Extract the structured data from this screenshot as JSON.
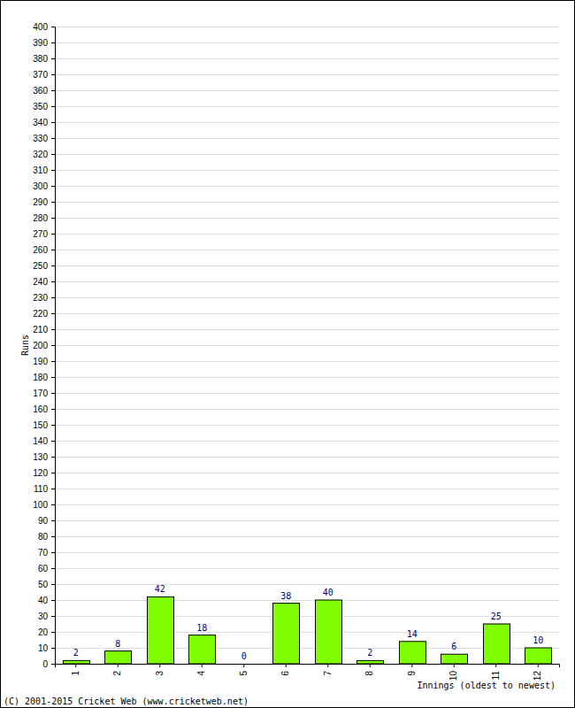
{
  "chart_data": {
    "type": "bar",
    "x_label": "Innings (oldest to newest)",
    "y_label": "Runs",
    "annotations": [
      "(C) 2001-2015 Cricket Web (www.cricketweb.net)"
    ],
    "categories": [
      "1",
      "2",
      "3",
      "4",
      "5",
      "6",
      "7",
      "8",
      "9",
      "10",
      "11",
      "12"
    ],
    "values": [
      2,
      8,
      42,
      18,
      0,
      38,
      40,
      2,
      14,
      6,
      25,
      10
    ],
    "color": "#80ff00",
    "data_labels": true,
    "ylim": [
      0,
      400
    ],
    "yticks": [
      0,
      10,
      20,
      30,
      40,
      50,
      60,
      70,
      80,
      90,
      100,
      110,
      120,
      130,
      140,
      150,
      160,
      170,
      180,
      190,
      200,
      210,
      220,
      230,
      240,
      250,
      260,
      270,
      280,
      290,
      300,
      310,
      320,
      330,
      340,
      350,
      360,
      370,
      380,
      390,
      400
    ],
    "grid": true
  }
}
